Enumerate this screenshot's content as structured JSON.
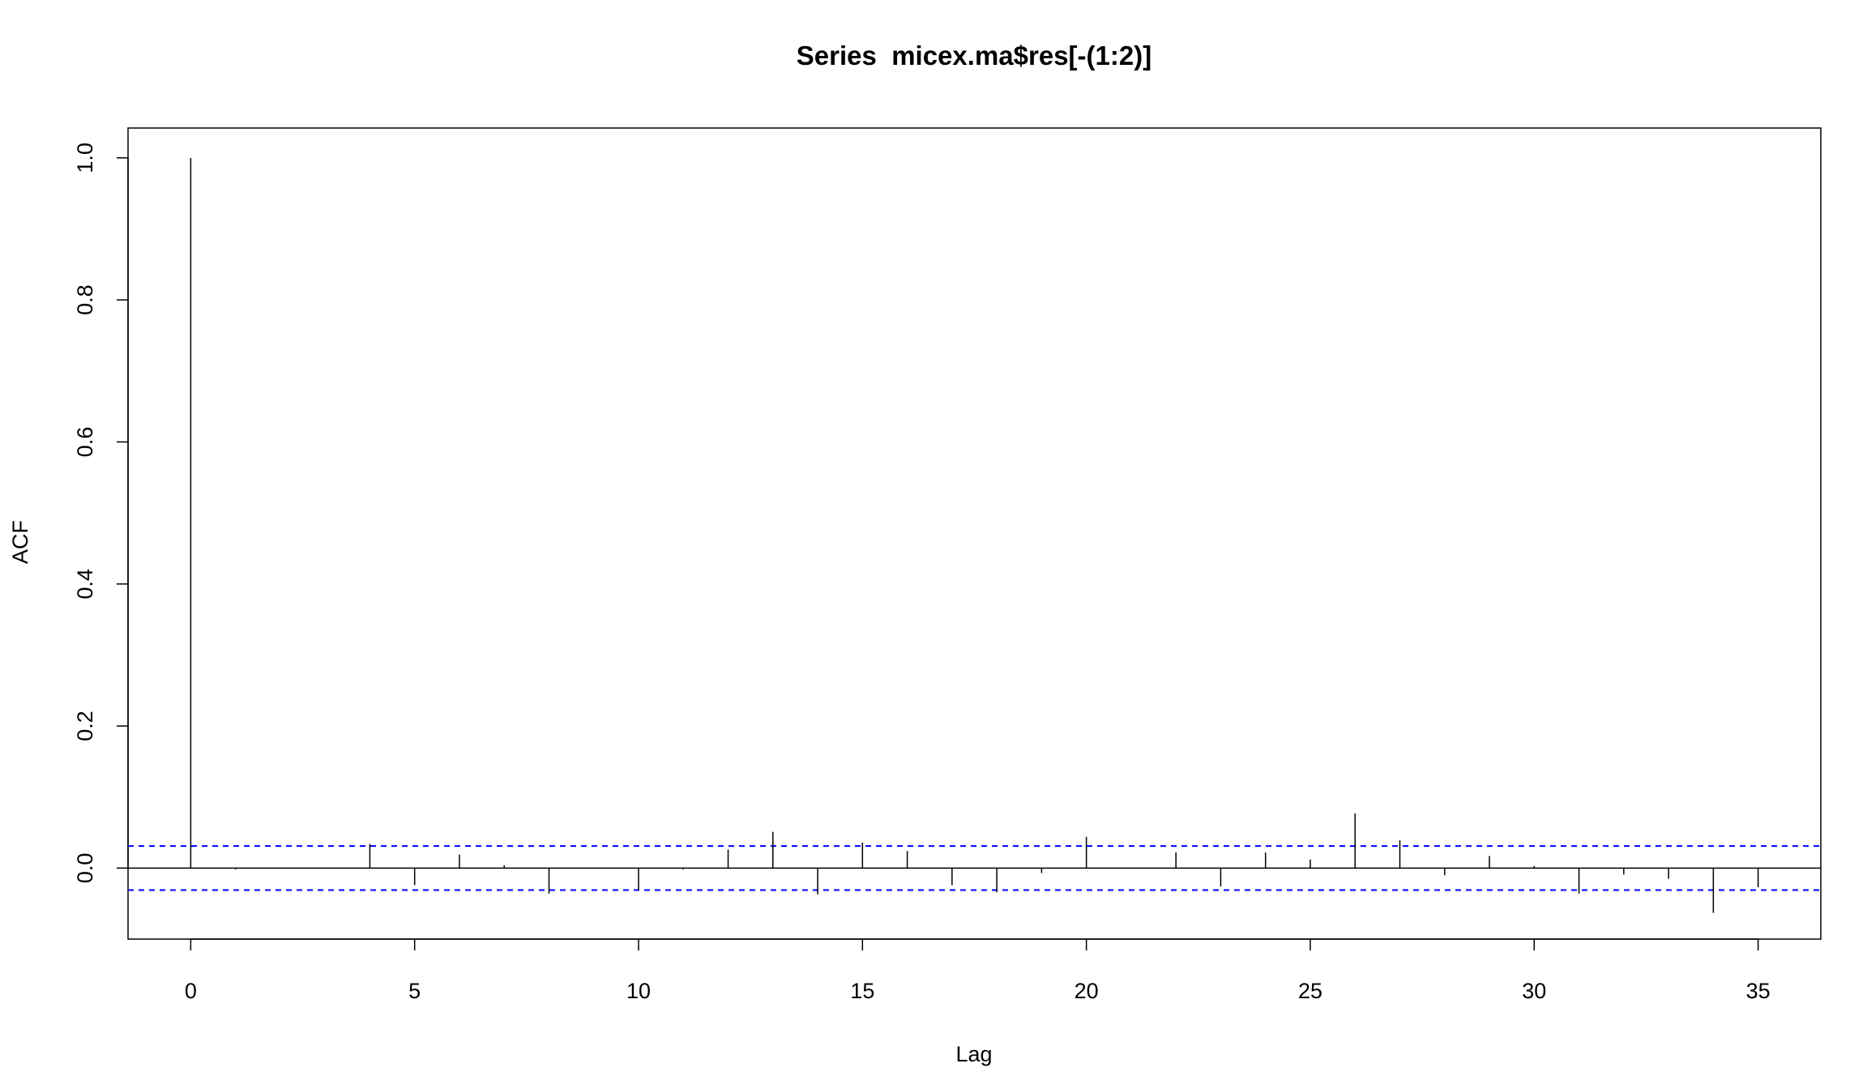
{
  "chart_data": {
    "type": "acf",
    "title": "Series  micex.ma$res[-(1:2)]",
    "x_label": "Lag",
    "y_label": "ACF",
    "x": [
      0,
      1,
      2,
      3,
      4,
      5,
      6,
      7,
      8,
      9,
      10,
      11,
      12,
      13,
      14,
      15,
      16,
      17,
      18,
      19,
      20,
      21,
      22,
      23,
      24,
      25,
      26,
      27,
      28,
      29,
      30,
      31,
      32,
      33,
      34,
      35
    ],
    "values": [
      1.0,
      -0.002,
      0.0,
      0.001,
      0.034,
      -0.024,
      0.019,
      0.004,
      -0.036,
      0.001,
      -0.031,
      -0.002,
      0.026,
      0.051,
      -0.037,
      0.036,
      0.024,
      -0.024,
      -0.034,
      -0.007,
      0.044,
      0.001,
      0.022,
      -0.026,
      0.022,
      0.012,
      0.077,
      0.039,
      -0.01,
      0.017,
      0.003,
      -0.036,
      -0.009,
      -0.015,
      -0.063,
      -0.027
    ],
    "color": "#000000",
    "confidence_bound": 0.031,
    "confidence_color": "#0000ff",
    "xlim": [
      -1.4,
      36.4
    ],
    "ylim": [
      -0.1,
      1.042
    ],
    "xticks": [
      0,
      5,
      10,
      15,
      20,
      25,
      30,
      35
    ],
    "yticks": [
      {
        "value": 0,
        "label": "0.0"
      },
      {
        "value": 0.2,
        "label": "0.2"
      },
      {
        "value": 0.4,
        "label": "0.4"
      },
      {
        "value": 0.6,
        "label": "0.6"
      },
      {
        "value": 0.8,
        "label": "0.8"
      },
      {
        "value": 1,
        "label": "1.0"
      }
    ]
  }
}
